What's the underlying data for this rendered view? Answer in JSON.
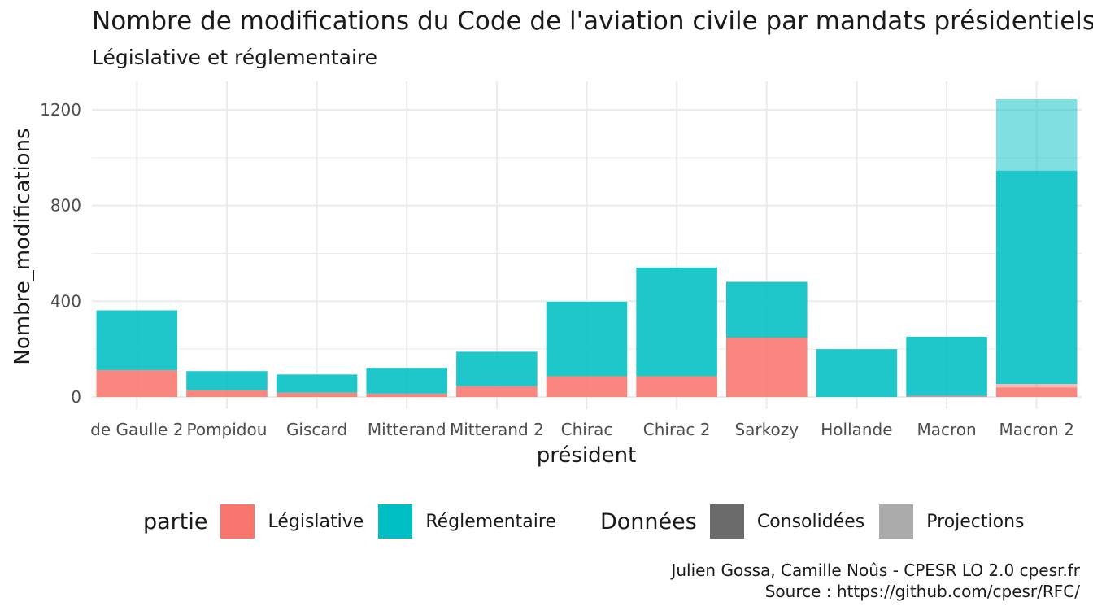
{
  "title": "Nombre de modifications du Code de l'aviation civile par mandats présidentiels",
  "subtitle": "Législative et réglementaire",
  "chart_data": {
    "type": "bar",
    "stacked": true,
    "xlabel": "président",
    "ylabel": "Nombre_modifications",
    "ylim": [
      0,
      1290
    ],
    "yticks": [
      0,
      400,
      800,
      1200
    ],
    "categories": [
      "de Gaulle 2",
      "Pompidou",
      "Giscard",
      "Mitterand",
      "Mitterand 2",
      "Chirac",
      "Chirac 2",
      "Sarkozy",
      "Hollande",
      "Macron",
      "Macron 2"
    ],
    "series": [
      {
        "name": "Législative",
        "donnees": "Consolidées",
        "color": "#F8766D",
        "values": [
          112,
          28,
          18,
          14,
          45,
          86,
          86,
          248,
          0,
          4,
          40
        ]
      },
      {
        "name": "Législative",
        "donnees": "Projections",
        "color": "#F8766D",
        "values": [
          0,
          0,
          0,
          0,
          0,
          0,
          0,
          0,
          0,
          0,
          14
        ]
      },
      {
        "name": "Réglementaire",
        "donnees": "Consolidées",
        "color": "#00BFC4",
        "values": [
          250,
          80,
          76,
          108,
          144,
          312,
          455,
          233,
          200,
          248,
          892
        ]
      },
      {
        "name": "Réglementaire",
        "donnees": "Projections",
        "color": "#00BFC4",
        "values": [
          0,
          0,
          0,
          0,
          0,
          0,
          0,
          0,
          0,
          0,
          298
        ]
      }
    ],
    "grid": true,
    "legend_position": "bottom"
  },
  "legend": {
    "fill_title": "partie",
    "fill_items": [
      {
        "label": "Législative",
        "color": "#F8766D"
      },
      {
        "label": "Réglementaire",
        "color": "#00BFC4"
      }
    ],
    "alpha_title": "Données",
    "alpha_items": [
      {
        "label": "Consolidées",
        "color": "#6b6b6b"
      },
      {
        "label": "Projections",
        "color": "#ababab"
      }
    ]
  },
  "caption": {
    "line1": "Julien Gossa, Camille Noûs - CPESR LO 2.0 cpesr.fr",
    "line2": "Source : https://github.com/cpesr/RFC/"
  }
}
